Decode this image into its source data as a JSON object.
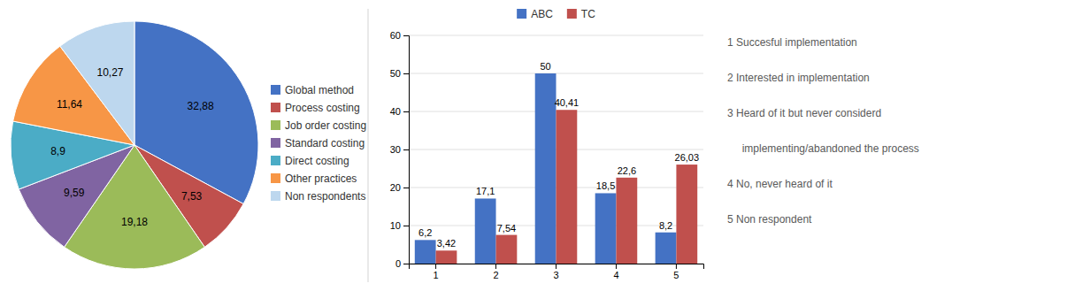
{
  "chart_data": [
    {
      "type": "pie",
      "categories": [
        "Global method",
        "Process costing",
        "Job order costing",
        "Standard costing",
        "Direct costing",
        "Other practices",
        "Non respondents"
      ],
      "values": [
        32.88,
        7.53,
        19.18,
        9.59,
        8.9,
        11.64,
        10.27
      ],
      "value_labels": [
        "32,88",
        "7,53",
        "19,18",
        "9,59",
        "8,9",
        "11,64",
        "10,27"
      ],
      "colors": [
        "#4472C4",
        "#C0504D",
        "#9BBB59",
        "#8064A2",
        "#4BACC6",
        "#F79646",
        "#BDD7EE"
      ],
      "data_labels": true,
      "legend": "right"
    },
    {
      "type": "bar",
      "categories": [
        "1",
        "2",
        "3",
        "4",
        "5"
      ],
      "series": [
        {
          "name": "ABC",
          "color": "#4472C4",
          "values": [
            6.2,
            17.1,
            50.0,
            18.5,
            8.2
          ],
          "value_labels": [
            "6,2",
            "17,1",
            "50",
            "18,5",
            "8,2"
          ]
        },
        {
          "name": "TC",
          "color": "#C0504D",
          "values": [
            3.42,
            7.54,
            40.41,
            22.6,
            26.03
          ],
          "value_labels": [
            "3,42",
            "7,54",
            "40,41",
            "22,6",
            "26,03"
          ]
        }
      ],
      "ylim": [
        0,
        60
      ],
      "yticks": [
        0,
        10,
        20,
        30,
        40,
        50,
        60
      ],
      "grid": true,
      "data_labels": true,
      "legend": "top",
      "annotations": [
        "1 Succesful implementation",
        "2 Interested in implementation",
        "3 Heard of it but never considerd",
        "     implementing/abandoned the process",
        "4 No, never heard of it",
        "5 Non respondent"
      ]
    }
  ]
}
